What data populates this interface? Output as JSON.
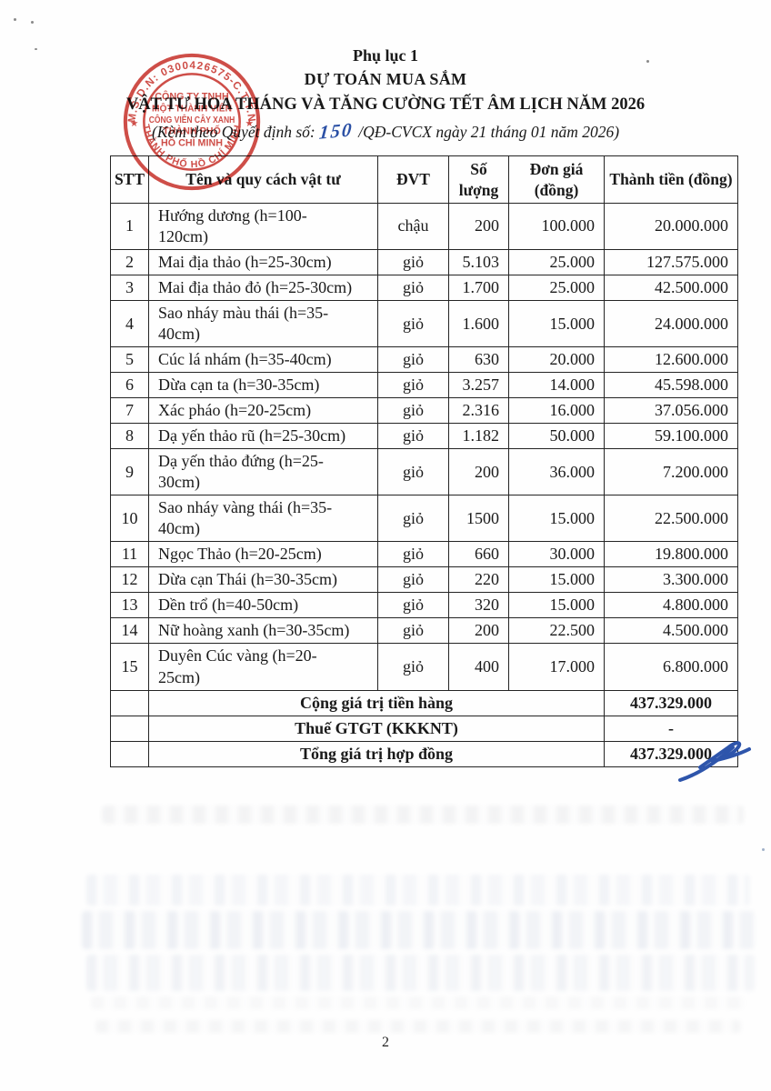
{
  "header": {
    "appendix": "Phụ lục 1",
    "title1": "DỰ TOÁN MUA SẮM",
    "title2": "VẬT TƯ HOA THÁNG VÀ TĂNG CƯỜNG TẾT ÂM LỊCH NĂM 2026",
    "subtitle_prefix": "(Kèm theo Quyết định số:",
    "decision_number": "150",
    "subtitle_suffix": "/QĐ-CVCX ngày 21 tháng 01 năm 2026)"
  },
  "stamp": {
    "ring_top": "M.S.D.N: 0300426575-C.T.T.N",
    "ring_bottom": "THÀNH PHỐ HỒ CHÍ MINH",
    "line1": "CÔNG TY TNHH",
    "line2": "MỘT THÀNH VIÊN",
    "line3": "CÔNG VIÊN CÂY XANH",
    "line4": "THÀNH PHỐ",
    "line5": "HỒ CHÍ MINH",
    "star": "★",
    "color": "#c9352e"
  },
  "table": {
    "headers": [
      "STT",
      "Tên và quy cách vật tư",
      "ĐVT",
      "Số lượng",
      "Đơn giá (đồng)",
      "Thành tiền (đồng)"
    ],
    "rows": [
      {
        "stt": "1",
        "name": "Hướng dương (h=100-120cm)",
        "unit": "chậu",
        "qty": "200",
        "price": "100.000",
        "total": "20.000.000"
      },
      {
        "stt": "2",
        "name": "Mai địa thảo (h=25-30cm)",
        "unit": "giỏ",
        "qty": "5.103",
        "price": "25.000",
        "total": "127.575.000"
      },
      {
        "stt": "3",
        "name": "Mai địa thảo đỏ (h=25-30cm)",
        "unit": "giỏ",
        "qty": "1.700",
        "price": "25.000",
        "total": "42.500.000"
      },
      {
        "stt": "4",
        "name": "Sao nháy màu thái (h=35-40cm)",
        "unit": "giỏ",
        "qty": "1.600",
        "price": "15.000",
        "total": "24.000.000"
      },
      {
        "stt": "5",
        "name": "Cúc lá nhám (h=35-40cm)",
        "unit": "giỏ",
        "qty": "630",
        "price": "20.000",
        "total": "12.600.000"
      },
      {
        "stt": "6",
        "name": "Dừa cạn ta (h=30-35cm)",
        "unit": "giỏ",
        "qty": "3.257",
        "price": "14.000",
        "total": "45.598.000"
      },
      {
        "stt": "7",
        "name": "Xác pháo (h=20-25cm)",
        "unit": "giỏ",
        "qty": "2.316",
        "price": "16.000",
        "total": "37.056.000"
      },
      {
        "stt": "8",
        "name": "Dạ yến thảo rũ (h=25-30cm)",
        "unit": "giỏ",
        "qty": "1.182",
        "price": "50.000",
        "total": "59.100.000"
      },
      {
        "stt": "9",
        "name": "Dạ yến thảo đứng (h=25-30cm)",
        "unit": "giỏ",
        "qty": "200",
        "price": "36.000",
        "total": "7.200.000"
      },
      {
        "stt": "10",
        "name": "Sao nháy vàng thái (h=35-40cm)",
        "unit": "giỏ",
        "qty": "1500",
        "price": "15.000",
        "total": "22.500.000"
      },
      {
        "stt": "11",
        "name": "Ngọc Thảo (h=20-25cm)",
        "unit": "giỏ",
        "qty": "660",
        "price": "30.000",
        "total": "19.800.000"
      },
      {
        "stt": "12",
        "name": "Dừa cạn Thái (h=30-35cm)",
        "unit": "giỏ",
        "qty": "220",
        "price": "15.000",
        "total": "3.300.000"
      },
      {
        "stt": "13",
        "name": "Dền trổ (h=40-50cm)",
        "unit": "giỏ",
        "qty": "320",
        "price": "15.000",
        "total": "4.800.000"
      },
      {
        "stt": "14",
        "name": "Nữ hoàng xanh (h=30-35cm)",
        "unit": "giỏ",
        "qty": "200",
        "price": "22.500",
        "total": "4.500.000"
      },
      {
        "stt": "15",
        "name": "Duyên Cúc vàng (h=20-25cm)",
        "unit": "giỏ",
        "qty": "400",
        "price": "17.000",
        "total": "6.800.000"
      }
    ],
    "summary": [
      {
        "label": "Cộng giá trị tiền hàng",
        "value": "437.329.000"
      },
      {
        "label": "Thuế GTGT (KKKNT)",
        "value": "-"
      },
      {
        "label": "Tổng giá trị hợp đồng",
        "value": "437.329.000"
      }
    ]
  },
  "page": {
    "number": "2"
  }
}
